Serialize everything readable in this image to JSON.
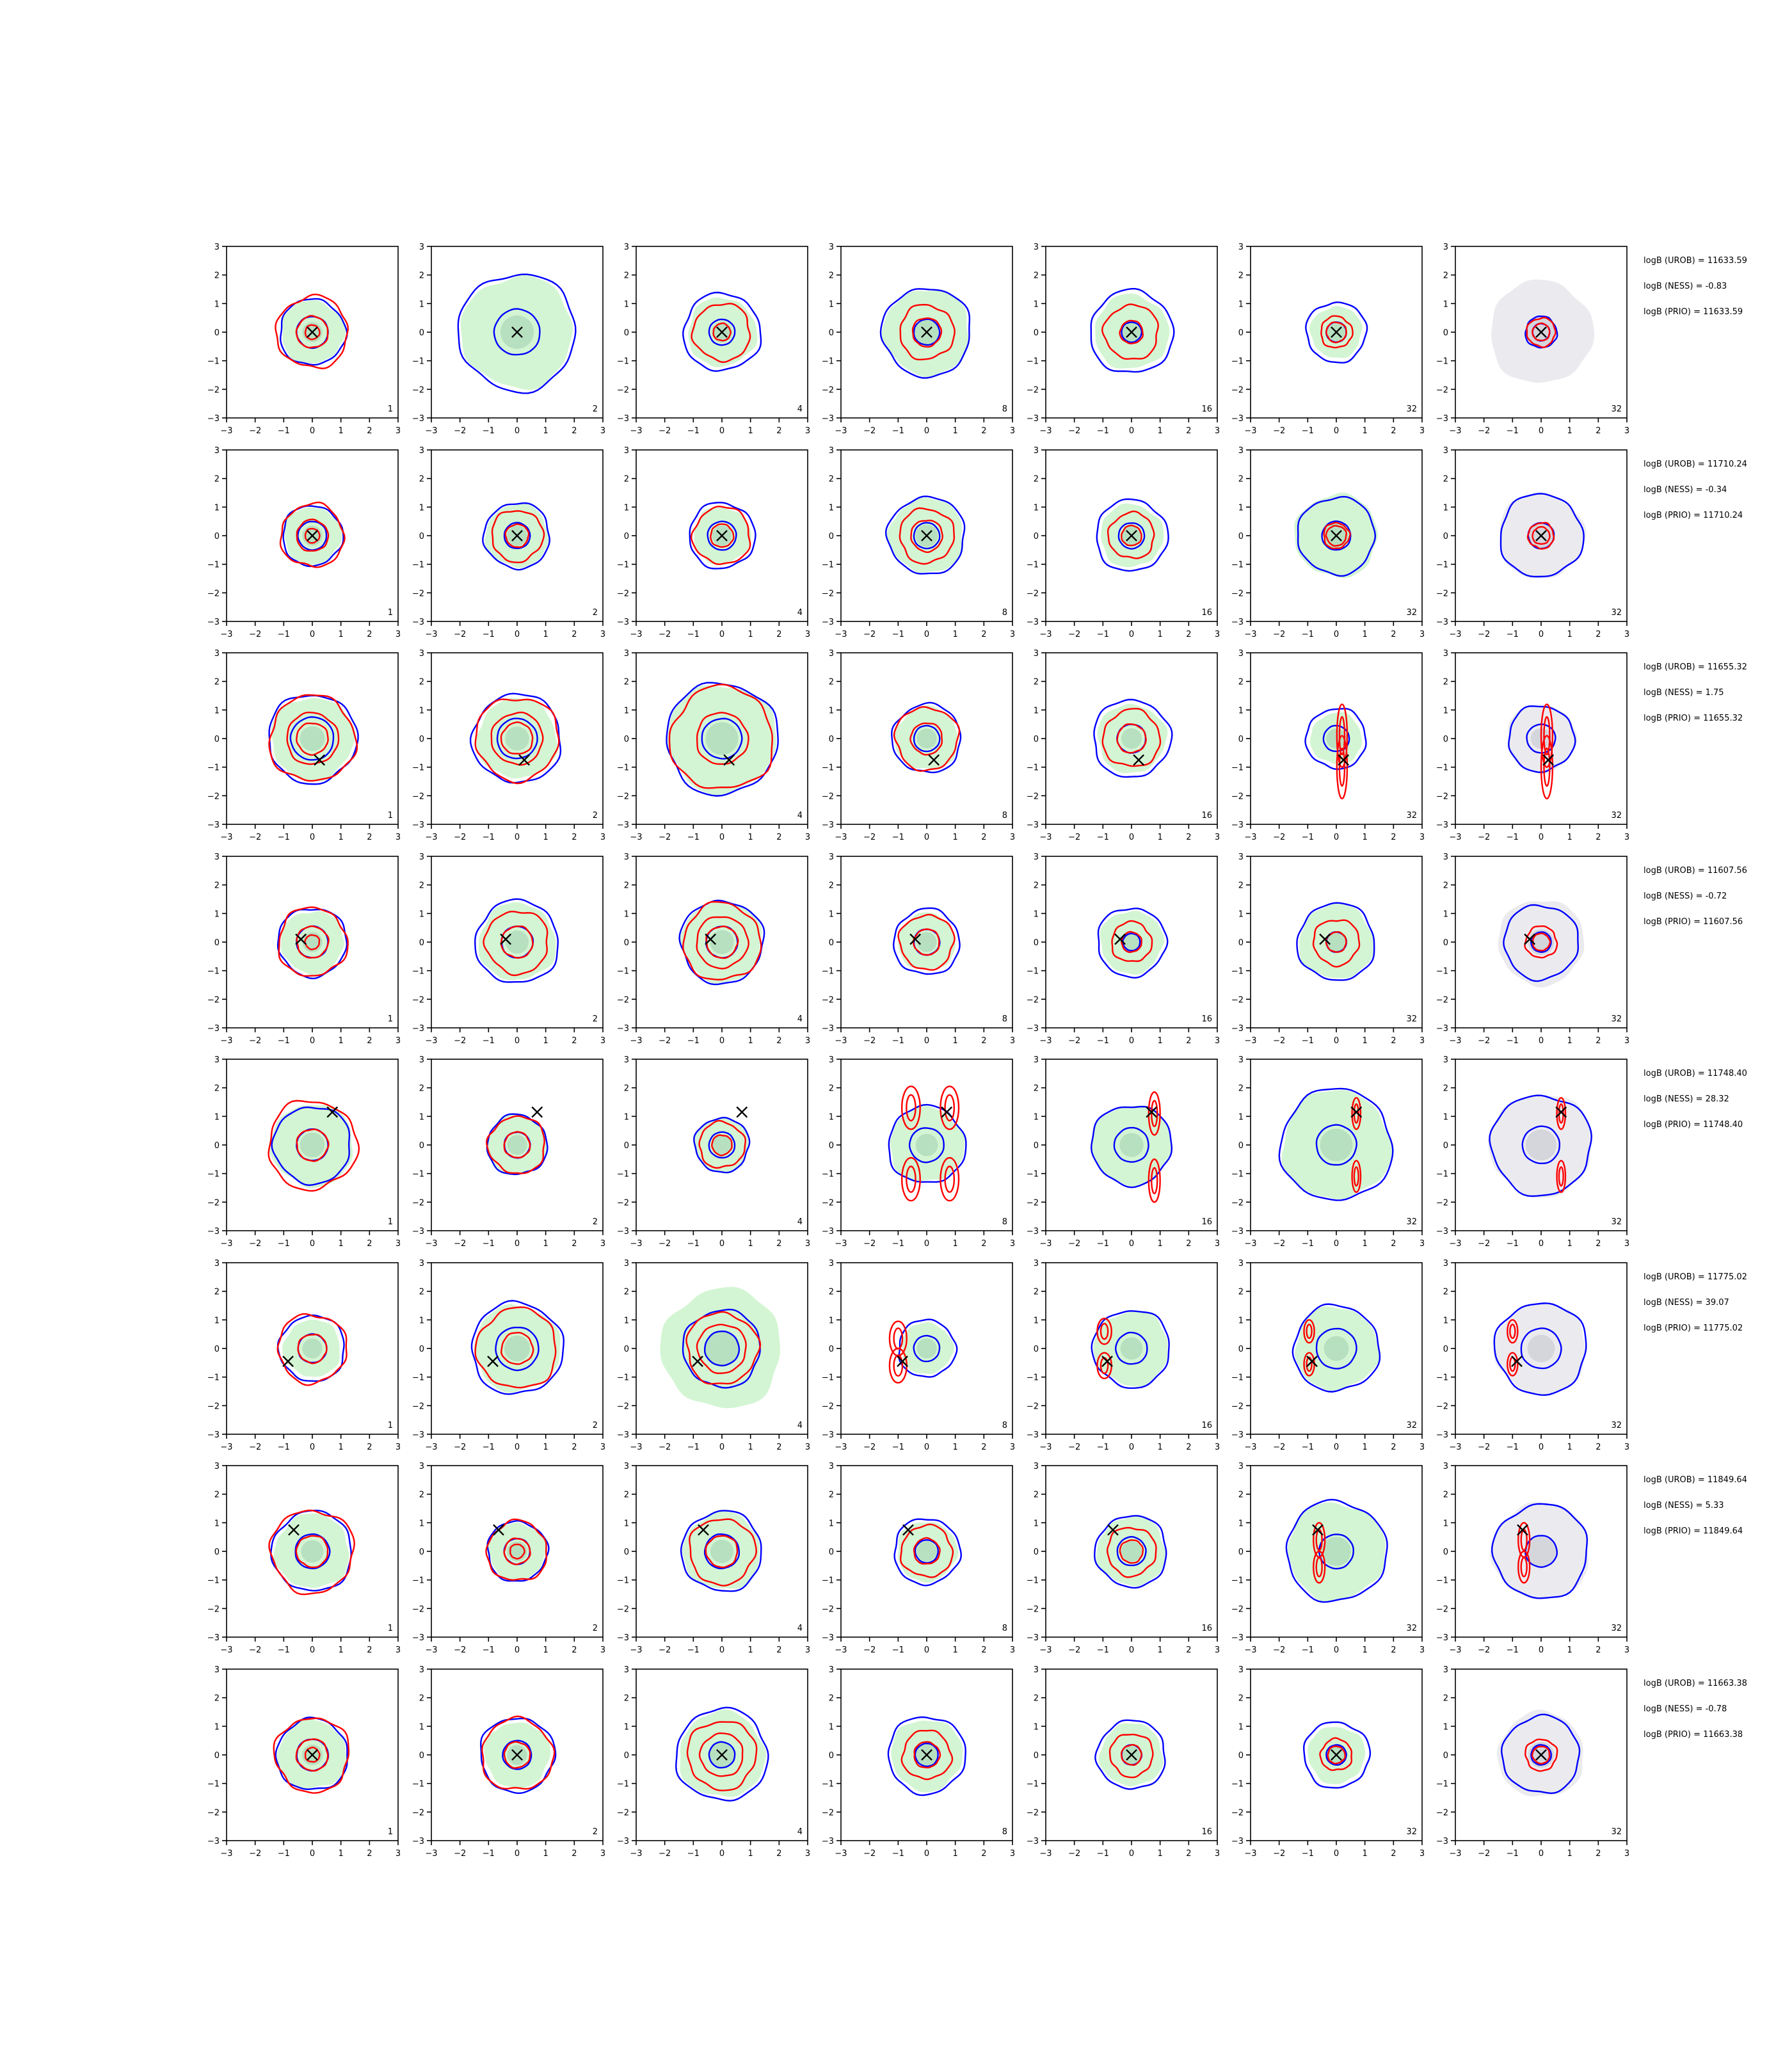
{
  "figure": {
    "type": "contour-grid",
    "rows": 8,
    "columns": 7,
    "axis": {
      "xlim": [
        -3,
        3
      ],
      "ylim": [
        -3,
        3
      ],
      "ticks": [
        -3,
        -2,
        -1,
        0,
        1,
        2,
        3
      ]
    },
    "tick_labels": [
      "−3",
      "−2",
      "−1",
      "0",
      "1",
      "2",
      "3"
    ],
    "column_labels": [
      "1",
      "2",
      "4",
      "8",
      "16",
      "32",
      "32"
    ],
    "colors": {
      "fill_green": "#d3f5d3",
      "fill_green_dark": "#b7e0c0",
      "fill_gray": "#ebebef",
      "fill_gray_dark": "#d5d5dc",
      "contour_blue": "#0000ff",
      "contour_red": "#ff0000",
      "marker": "#000000"
    }
  },
  "chart_data": [
    {
      "type": "contour",
      "truth_marker": [
        0,
        0
      ],
      "annotations": [
        "logB (UROB) = 11633.59",
        "logB (NESS) = -0.83",
        "logB (PRIO) = 11633.59"
      ],
      "panels": [
        {
          "col": 1,
          "label": "1",
          "blue": [
            1.15,
            0.55
          ],
          "red": [
            1.25,
            0.55,
            0.25
          ],
          "green": 1.1
        },
        {
          "col": 2,
          "label": "2",
          "blue": [
            2.05,
            0.8
          ],
          "red": [],
          "green": 1.95
        },
        {
          "col": 3,
          "label": "4",
          "blue": [
            1.35,
            0.45
          ],
          "red": [
            1.0,
            0.3
          ],
          "green": 1.2
        },
        {
          "col": 4,
          "label": "8",
          "blue": [
            1.55,
            0.45
          ],
          "red": [
            0.95,
            0.5
          ],
          "green": 1.5
        },
        {
          "col": 5,
          "label": "16",
          "blue": [
            1.45,
            0.35
          ],
          "red": [
            0.95,
            0.4
          ],
          "green": 1.3
        },
        {
          "col": 6,
          "label": "32",
          "blue": [
            1.05,
            0.35
          ],
          "red": [
            0.55,
            0.35
          ],
          "green": 0.9
        },
        {
          "col": 7,
          "label": "32",
          "blue": [
            0.55,
            0.3
          ],
          "red": [
            0.5,
            0.3
          ],
          "gray": 1.8
        }
      ]
    },
    {
      "type": "contour",
      "truth_marker": [
        0,
        0
      ],
      "annotations": [
        "logB (UROB) = 11710.24",
        "logB (NESS) = -0.34",
        "logB (PRIO) = 11710.24"
      ],
      "panels": [
        {
          "col": 1,
          "label": "1",
          "blue": [
            1.05,
            0.5
          ],
          "red": [
            1.1,
            0.55,
            0.25
          ],
          "green": 1.0
        },
        {
          "col": 2,
          "label": "2",
          "blue": [
            1.15,
            0.45
          ],
          "red": [
            0.9,
            0.4
          ],
          "green": 1.1
        },
        {
          "col": 3,
          "label": "4",
          "blue": [
            1.15,
            0.5
          ],
          "red": [
            1.0,
            0.4
          ],
          "green": 1.0
        },
        {
          "col": 4,
          "label": "8",
          "blue": [
            1.35,
            0.45
          ],
          "red": [
            0.95,
            0.55
          ],
          "green": 1.3
        },
        {
          "col": 5,
          "label": "16",
          "blue": [
            1.25,
            0.45
          ],
          "red": [
            0.8,
            0.35
          ],
          "green": 1.1
        },
        {
          "col": 6,
          "label": "32",
          "blue": [
            1.35,
            0.5
          ],
          "red": [
            0.45,
            0.35
          ],
          "green": 1.45
        },
        {
          "col": 7,
          "label": "32",
          "blue": [
            1.45,
            0.45
          ],
          "red": [
            0.45,
            0.3
          ],
          "gray": 1.5
        }
      ]
    },
    {
      "type": "contour",
      "truth_marker": [
        0.25,
        -0.75
      ],
      "annotations": [
        "logB (UROB) = 11655.32",
        "logB (NESS) = 1.75",
        "logB (PRIO) = 11655.32"
      ],
      "panels": [
        {
          "col": 1,
          "label": "1",
          "blue": [
            1.55,
            0.75
          ],
          "red": [
            1.5,
            0.9,
            0.55
          ],
          "green": 1.45
        },
        {
          "col": 2,
          "label": "2",
          "blue": [
            1.55,
            0.7
          ],
          "red": [
            1.45,
            0.9,
            0.55
          ],
          "green": 1.4
        },
        {
          "col": 3,
          "label": "4",
          "blue": [
            1.95,
            0.7
          ],
          "red": [
            1.8,
            0.9
          ],
          "green": 1.9
        },
        {
          "col": 4,
          "label": "8",
          "blue": [
            1.2,
            0.45
          ],
          "red": [
            1.1,
            0.55
          ],
          "green": 1.1
        },
        {
          "col": 5,
          "label": "16",
          "blue": [
            1.35,
            0.5
          ],
          "red": [
            1.0,
            0.5
          ],
          "green": 1.2
        },
        {
          "col": 6,
          "label": "32",
          "blue": [
            1.05,
            0.45
          ],
          "red": [],
          "green": 0.9,
          "lobes": [
            [
              0.2,
              0.1,
              0.18,
              1.1
            ],
            [
              0.2,
              -1.0,
              0.18,
              1.1
            ]
          ]
        },
        {
          "col": 7,
          "label": "32",
          "blue": [
            1.15,
            0.5
          ],
          "red": [],
          "gray": 1.2,
          "lobes": [
            [
              0.2,
              0.1,
              0.2,
              1.1
            ],
            [
              0.2,
              -1.0,
              0.2,
              1.1
            ]
          ]
        }
      ]
    },
    {
      "type": "contour",
      "truth_marker": [
        -0.4,
        0.1
      ],
      "annotations": [
        "logB (UROB) = 11607.56",
        "logB (NESS) = -0.72",
        "logB (PRIO) = 11607.56"
      ],
      "panels": [
        {
          "col": 1,
          "label": "1",
          "blue": [
            1.2,
            0.55
          ],
          "red": [
            1.2,
            0.55,
            0.25
          ],
          "green": 1.1
        },
        {
          "col": 2,
          "label": "2",
          "blue": [
            1.45,
            0.55
          ],
          "red": [
            1.1,
            0.55
          ],
          "green": 1.35
        },
        {
          "col": 3,
          "label": "4",
          "blue": [
            1.45,
            0.55
          ],
          "red": [
            1.35,
            0.9,
            0.55
          ],
          "green": 1.4
        },
        {
          "col": 4,
          "label": "8",
          "blue": [
            1.15,
            0.45
          ],
          "red": [
            0.95,
            0.45
          ],
          "green": 1.0
        },
        {
          "col": 5,
          "label": "16",
          "blue": [
            1.2,
            0.3
          ],
          "red": [
            0.7,
            0.35
          ],
          "green": 1.1
        },
        {
          "col": 6,
          "label": "32",
          "blue": [
            1.35,
            0.35
          ],
          "red": [
            0.8,
            0.35
          ],
          "green": 1.3
        },
        {
          "col": 7,
          "label": "32",
          "blue": [
            1.3,
            0.35
          ],
          "red": [
            0.55,
            0.3
          ],
          "gray": 1.5
        }
      ]
    },
    {
      "type": "contour",
      "truth_marker": [
        0.7,
        1.15
      ],
      "annotations": [
        "logB (UROB) = 11748.40",
        "logB (NESS) = 28.32",
        "logB (PRIO) = 11748.40"
      ],
      "panels": [
        {
          "col": 1,
          "label": "1",
          "blue": [
            1.35,
            0.55
          ],
          "red": [
            1.55,
            0.55
          ],
          "green": 1.45
        },
        {
          "col": 2,
          "label": "2",
          "blue": [
            1.05,
            0.45
          ],
          "red": [
            1.0,
            0.45
          ],
          "green": 1.05
        },
        {
          "col": 3,
          "label": "4",
          "blue": [
            0.95,
            0.45
          ],
          "red": [
            0.8,
            0.35
          ],
          "green": 0.95
        },
        {
          "col": 4,
          "label": "8",
          "blue": [
            1.35,
            0.6
          ],
          "red": [],
          "green": 1.3,
          "lobes": [
            [
              -0.55,
              1.3,
              0.32,
              0.75
            ],
            [
              0.8,
              1.3,
              0.32,
              0.75
            ],
            [
              -0.55,
              -1.2,
              0.32,
              0.75
            ],
            [
              0.8,
              -1.2,
              0.32,
              0.75
            ]
          ]
        },
        {
          "col": 5,
          "label": "16",
          "blue": [
            1.4,
            0.6
          ],
          "red": [],
          "green": 1.4,
          "lobes": [
            [
              0.8,
              1.1,
              0.2,
              0.75
            ],
            [
              0.8,
              -1.25,
              0.2,
              0.75
            ]
          ]
        },
        {
          "col": 6,
          "label": "32",
          "blue": [
            1.95,
            0.7
          ],
          "red": [],
          "green": 1.9,
          "lobes": [
            [
              0.7,
              1.1,
              0.15,
              0.55
            ],
            [
              0.7,
              -1.1,
              0.15,
              0.55
            ]
          ]
        },
        {
          "col": 7,
          "label": "32",
          "blue": [
            1.75,
            0.65
          ],
          "red": [],
          "gray": 1.8,
          "lobes": [
            [
              0.7,
              1.1,
              0.15,
              0.55
            ],
            [
              0.7,
              -1.1,
              0.15,
              0.55
            ]
          ]
        }
      ]
    },
    {
      "type": "contour",
      "truth_marker": [
        -0.85,
        -0.45
      ],
      "annotations": [
        "logB (UROB) = 11775.02",
        "logB (NESS) = 39.07",
        "logB (PRIO) = 11775.02"
      ],
      "panels": [
        {
          "col": 1,
          "label": "1",
          "blue": [
            1.15,
            0.5
          ],
          "red": [
            1.2,
            0.5
          ],
          "green": 1.0
        },
        {
          "col": 2,
          "label": "2",
          "blue": [
            1.6,
            0.75
          ],
          "red": [
            1.4,
            0.55
          ],
          "green": 1.5
        },
        {
          "col": 3,
          "label": "4",
          "blue": [
            1.35,
            0.6
          ],
          "red": [
            1.25,
            0.85
          ],
          "green": 2.1
        },
        {
          "col": 4,
          "label": "8",
          "blue": [
            1.0,
            0.45
          ],
          "red": [],
          "green": 0.9,
          "lobes": [
            [
              -1.0,
              0.35,
              0.3,
              0.6
            ],
            [
              -1.0,
              -0.6,
              0.3,
              0.6
            ]
          ]
        },
        {
          "col": 5,
          "label": "16",
          "blue": [
            1.35,
            0.55
          ],
          "red": [],
          "green": 1.3,
          "lobes": [
            [
              -0.95,
              0.6,
              0.25,
              0.45
            ],
            [
              -0.95,
              -0.6,
              0.25,
              0.45
            ]
          ]
        },
        {
          "col": 6,
          "label": "32",
          "blue": [
            1.5,
            0.7
          ],
          "red": [],
          "green": 1.45,
          "lobes": [
            [
              -0.95,
              0.6,
              0.18,
              0.4
            ],
            [
              -0.95,
              -0.55,
              0.18,
              0.4
            ]
          ]
        },
        {
          "col": 7,
          "label": "32",
          "blue": [
            1.6,
            0.7
          ],
          "red": [],
          "gray": 1.6,
          "lobes": [
            [
              -1.0,
              0.6,
              0.18,
              0.4
            ],
            [
              -1.0,
              -0.55,
              0.18,
              0.4
            ]
          ]
        }
      ]
    },
    {
      "type": "contour",
      "truth_marker": [
        -0.65,
        0.75
      ],
      "annotations": [
        "logB (UROB) = 11849.64",
        "logB (NESS) = 5.33",
        "logB (PRIO) = 11849.64"
      ],
      "panels": [
        {
          "col": 1,
          "label": "1",
          "blue": [
            1.4,
            0.6
          ],
          "red": [
            1.45,
            0.55
          ],
          "green": 1.3
        },
        {
          "col": 2,
          "label": "2",
          "blue": [
            1.05,
            0.45
          ],
          "red": [
            1.05,
            0.45,
            0.25
          ],
          "green": 1.0
        },
        {
          "col": 3,
          "label": "4",
          "blue": [
            1.4,
            0.6
          ],
          "red": [
            1.15,
            0.55
          ],
          "green": 1.35
        },
        {
          "col": 4,
          "label": "8",
          "blue": [
            1.15,
            0.4
          ],
          "red": [
            0.9,
            0.45
          ],
          "green": 1.05
        },
        {
          "col": 5,
          "label": "16",
          "blue": [
            1.25,
            0.5
          ],
          "red": [
            0.85,
            0.4
          ],
          "green": 1.2
        },
        {
          "col": 6,
          "label": "32",
          "blue": [
            1.75,
            0.6
          ],
          "red": [],
          "green": 1.7,
          "lobes": [
            [
              -0.6,
              0.4,
              0.2,
              0.6
            ],
            [
              -0.6,
              -0.55,
              0.2,
              0.55
            ]
          ]
        },
        {
          "col": 7,
          "label": "32",
          "blue": [
            1.65,
            0.55
          ],
          "red": [],
          "gray": 1.7,
          "lobes": [
            [
              -0.6,
              0.4,
              0.2,
              0.6
            ],
            [
              -0.6,
              -0.55,
              0.2,
              0.55
            ]
          ]
        }
      ]
    },
    {
      "type": "contour",
      "truth_marker": [
        0,
        0
      ],
      "annotations": [
        "logB (UROB) = 11663.38",
        "logB (NESS) = -0.78",
        "logB (PRIO) = 11663.38"
      ],
      "panels": [
        {
          "col": 1,
          "label": "1",
          "blue": [
            1.25,
            0.55
          ],
          "red": [
            1.3,
            0.55,
            0.25
          ],
          "green": 1.2
        },
        {
          "col": 2,
          "label": "2",
          "blue": [
            1.3,
            0.5
          ],
          "red": [
            1.25,
            0.45
          ],
          "green": 1.15
        },
        {
          "col": 3,
          "label": "4",
          "blue": [
            1.6,
            0.45
          ],
          "red": [
            1.2,
            0.75
          ],
          "green": 1.5
        },
        {
          "col": 4,
          "label": "8",
          "blue": [
            1.35,
            0.4
          ],
          "red": [
            0.85,
            0.45
          ],
          "green": 1.25
        },
        {
          "col": 5,
          "label": "16",
          "blue": [
            1.2,
            0.35
          ],
          "red": [
            0.75,
            0.35
          ],
          "green": 1.1
        },
        {
          "col": 6,
          "label": "32",
          "blue": [
            1.15,
            0.35
          ],
          "red": [
            0.55,
            0.3
          ],
          "green": 1.0
        },
        {
          "col": 7,
          "label": "32",
          "blue": [
            1.35,
            0.35
          ],
          "red": [
            0.55,
            0.3
          ],
          "gray": 1.5
        }
      ]
    }
  ]
}
